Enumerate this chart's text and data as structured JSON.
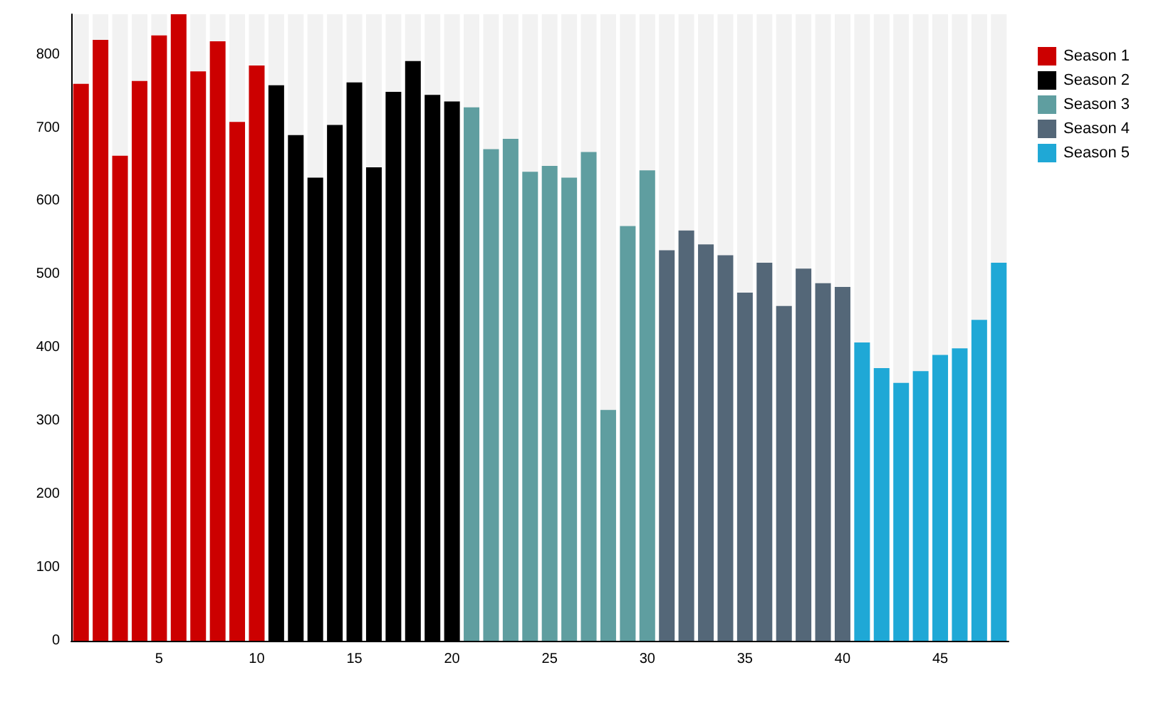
{
  "chart_data": {
    "type": "bar",
    "xlim": [
      0.5,
      48.5
    ],
    "xticks": [
      5,
      10,
      15,
      20,
      25,
      30,
      35,
      40,
      45
    ],
    "ylim": [
      0,
      855
    ],
    "yticks": [
      0,
      100,
      200,
      300,
      400,
      500,
      600,
      700,
      800
    ],
    "grid": false,
    "legend": "top right",
    "series": [
      {
        "name": "Season 1",
        "color": "#cc0000",
        "x": [
          1,
          2,
          3,
          4,
          5,
          6,
          7,
          8,
          9,
          10
        ],
        "values": [
          760,
          820,
          662,
          764,
          826,
          855,
          777,
          818,
          708,
          785
        ]
      },
      {
        "name": "Season 2",
        "color": "#000000",
        "x": [
          11,
          12,
          13,
          14,
          15,
          16,
          17,
          18,
          19,
          20
        ],
        "values": [
          758,
          690,
          632,
          704,
          762,
          646,
          749,
          791,
          745,
          736
        ]
      },
      {
        "name": "Season 3",
        "color": "#5f9ea0",
        "x": [
          21,
          22,
          23,
          24,
          25,
          26,
          27,
          28,
          29,
          30
        ],
        "values": [
          728,
          671,
          685,
          640,
          648,
          632,
          667,
          315,
          566,
          642
        ]
      },
      {
        "name": "Season 4",
        "color": "#546778",
        "x": [
          31,
          32,
          33,
          34,
          35,
          36,
          37,
          38,
          39,
          40
        ],
        "values": [
          533,
          560,
          541,
          526,
          475,
          516,
          457,
          508,
          488,
          483
        ]
      },
      {
        "name": "Season 5",
        "color": "#1fa8d6",
        "x": [
          41,
          42,
          43,
          44,
          45,
          46,
          47,
          48
        ],
        "values": [
          407,
          372,
          352,
          368,
          390,
          399,
          438,
          516
        ]
      }
    ]
  }
}
